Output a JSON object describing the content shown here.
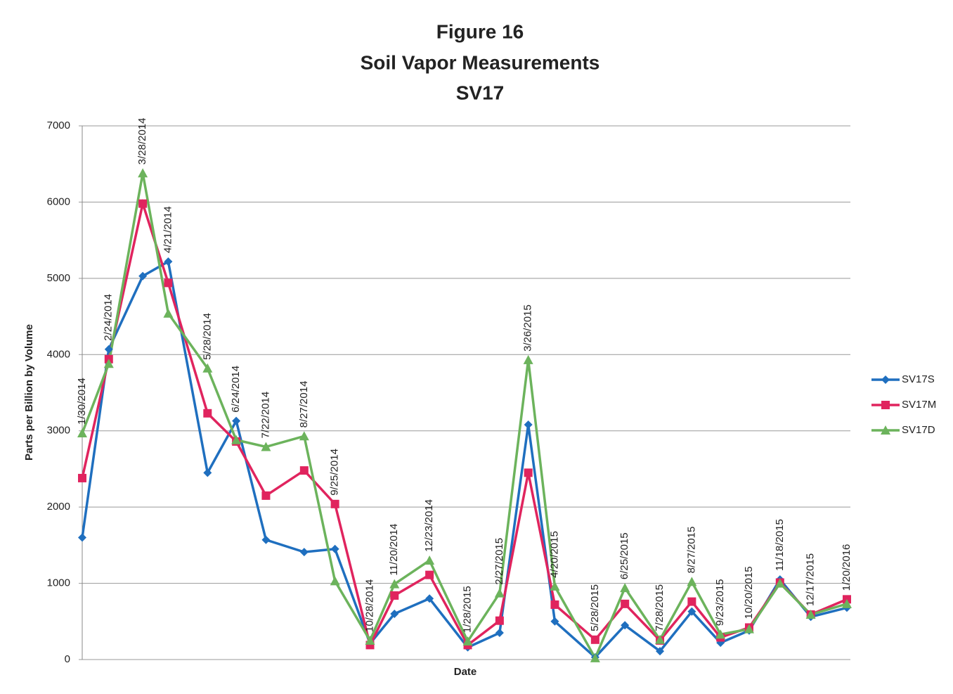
{
  "chart_data": {
    "type": "line",
    "title": [
      "Figure 16",
      "Soil Vapor Measurements",
      "SV17"
    ],
    "xlabel": "Date",
    "ylabel": "Parts per Billion by Volume",
    "x": [
      "1/30/2014",
      "2/24/2014",
      "3/28/2014",
      "4/21/2014",
      "5/28/2014",
      "6/24/2014",
      "7/22/2014",
      "8/27/2014",
      "9/25/2014",
      "10/28/2014",
      "11/20/2014",
      "12/23/2014",
      "1/28/2015",
      "2/27/2015",
      "3/26/2015",
      "4/20/2015",
      "5/28/2015",
      "6/25/2015",
      "7/28/2015",
      "8/27/2015",
      "9/23/2015",
      "10/20/2015",
      "11/18/2015",
      "12/17/2015",
      "1/20/2016"
    ],
    "series": [
      {
        "name": "SV17S",
        "color": "#1f6fbf",
        "marker": "diamond",
        "values": [
          1600,
          4070,
          5030,
          5220,
          2450,
          3130,
          1570,
          1410,
          1450,
          210,
          600,
          800,
          160,
          350,
          3080,
          500,
          30,
          450,
          110,
          630,
          220,
          380,
          1050,
          560,
          680
        ]
      },
      {
        "name": "SV17M",
        "color": "#e0245e",
        "marker": "square",
        "values": [
          2380,
          3940,
          5980,
          4940,
          3230,
          2860,
          2150,
          2480,
          2040,
          190,
          840,
          1110,
          190,
          510,
          2450,
          720,
          260,
          730,
          250,
          760,
          290,
          420,
          1010,
          590,
          790
        ]
      },
      {
        "name": "SV17D",
        "color": "#6cb35c",
        "marker": "triangle",
        "values": [
          2970,
          3880,
          6380,
          4540,
          3820,
          2880,
          2790,
          2930,
          1030,
          250,
          990,
          1300,
          240,
          870,
          3930,
          960,
          20,
          940,
          260,
          1020,
          330,
          400,
          1000,
          590,
          730
        ]
      }
    ],
    "ylim": [
      0,
      7000
    ],
    "yticks": [
      0,
      1000,
      2000,
      3000,
      4000,
      5000,
      6000,
      7000
    ],
    "grid": true,
    "legend": "right"
  }
}
